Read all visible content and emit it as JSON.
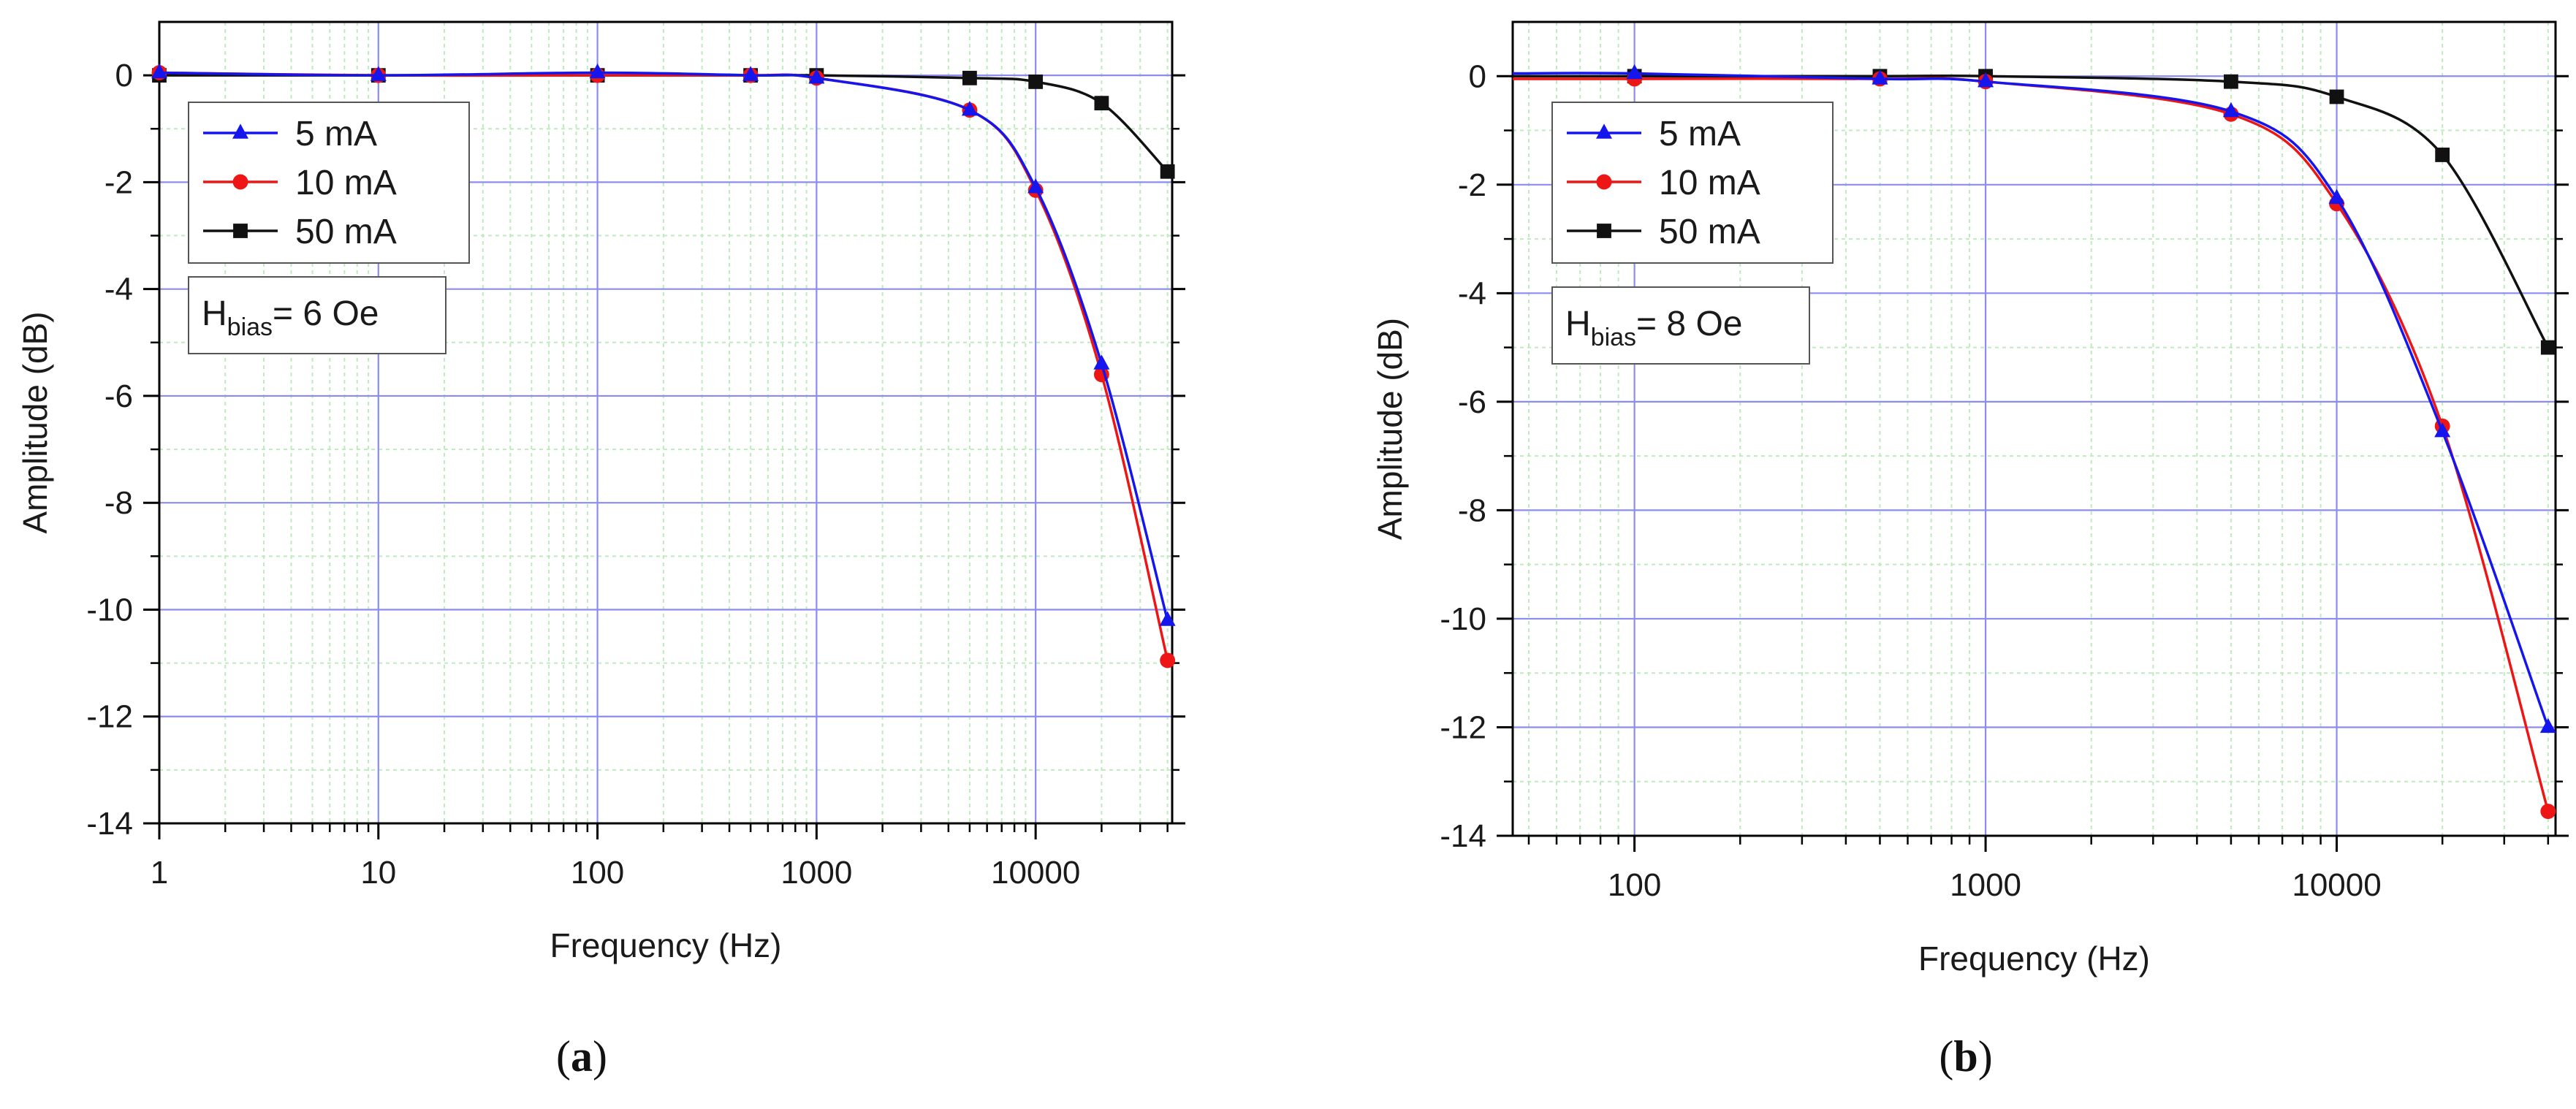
{
  "colors": {
    "5mA": "#1515ee",
    "10mA": "#ee1515",
    "50mA": "#111111",
    "major_grid": "#8c8cf0",
    "minor_grid": "#bdebbd",
    "axis": "#000000"
  },
  "chart_data": [
    {
      "type": "line",
      "panel_label": "a",
      "xscale": "log",
      "xlim": [
        1,
        42000
      ],
      "ylim": [
        -14,
        1
      ],
      "xlabel": "Frequency (Hz)",
      "ylabel": "Amplitude (dB)",
      "xticks": [
        1,
        10,
        100,
        1000,
        10000
      ],
      "xtick_labels": [
        "1",
        "10",
        "100",
        "1000",
        "10000"
      ],
      "yticks": [
        0,
        -2,
        -4,
        -6,
        -8,
        -10,
        -12,
        -14
      ],
      "ytick_labels": [
        "0",
        "-2",
        "-4",
        "-6",
        "-8",
        "-10",
        "-12",
        "-14"
      ],
      "grid": true,
      "legend_position": "top-left",
      "annotation": {
        "main": "H",
        "sub": "bias",
        "rest": "= 6 Oe"
      },
      "series": [
        {
          "name": "5 mA",
          "marker": "triangle",
          "color_key": "5mA",
          "x": [
            1,
            10,
            100,
            500,
            1000,
            5000,
            10000,
            20000,
            40000
          ],
          "y": [
            0.05,
            0.0,
            0.05,
            0.0,
            -0.05,
            -0.65,
            -2.1,
            -5.4,
            -10.2
          ]
        },
        {
          "name": "10 mA",
          "marker": "circle",
          "color_key": "10mA",
          "x": [
            1,
            10,
            100,
            500,
            1000,
            5000,
            10000,
            20000,
            40000
          ],
          "y": [
            0.05,
            0.0,
            0.0,
            0.0,
            -0.05,
            -0.65,
            -2.15,
            -5.6,
            -10.95
          ]
        },
        {
          "name": "50 mA",
          "marker": "square",
          "color_key": "50mA",
          "x": [
            1,
            10,
            100,
            500,
            1000,
            5000,
            10000,
            20000,
            40000
          ],
          "y": [
            0.0,
            0.0,
            0.0,
            0.0,
            0.0,
            -0.05,
            -0.12,
            -0.52,
            -1.8
          ]
        }
      ]
    },
    {
      "type": "line",
      "panel_label": "b",
      "xscale": "log",
      "xlim": [
        45,
        42000
      ],
      "ylim": [
        -14,
        1
      ],
      "xlabel": "Frequency (Hz)",
      "ylabel": "Amplitude (dB)",
      "xticks": [
        100,
        1000,
        10000
      ],
      "xtick_labels": [
        "100",
        "1000",
        "10000"
      ],
      "yticks": [
        0,
        -2,
        -4,
        -6,
        -8,
        -10,
        -12,
        -14
      ],
      "ytick_labels": [
        "0",
        "-2",
        "-4",
        "-6",
        "-8",
        "-10",
        "-12",
        "-14"
      ],
      "grid": true,
      "legend_position": "top-left",
      "annotation": {
        "main": "H",
        "sub": "bias",
        "rest": "= 8 Oe"
      },
      "series": [
        {
          "name": "5 mA",
          "marker": "triangle",
          "color_key": "5mA",
          "x": [
            45,
            100,
            500,
            1000,
            5000,
            10000,
            20000,
            40000
          ],
          "y": [
            0.05,
            0.05,
            -0.05,
            -0.1,
            -0.65,
            -2.25,
            -6.55,
            -12.0
          ]
        },
        {
          "name": "10 mA",
          "marker": "circle",
          "color_key": "10mA",
          "x": [
            45,
            100,
            500,
            1000,
            5000,
            10000,
            20000,
            40000
          ],
          "y": [
            -0.05,
            -0.05,
            -0.05,
            -0.1,
            -0.7,
            -2.35,
            -6.45,
            -13.55
          ]
        },
        {
          "name": "50 mA",
          "marker": "square",
          "color_key": "50mA",
          "x": [
            45,
            100,
            500,
            1000,
            5000,
            10000,
            20000,
            40000
          ],
          "y": [
            0.0,
            0.0,
            0.0,
            0.0,
            -0.1,
            -0.38,
            -1.45,
            -5.0
          ]
        }
      ]
    }
  ]
}
